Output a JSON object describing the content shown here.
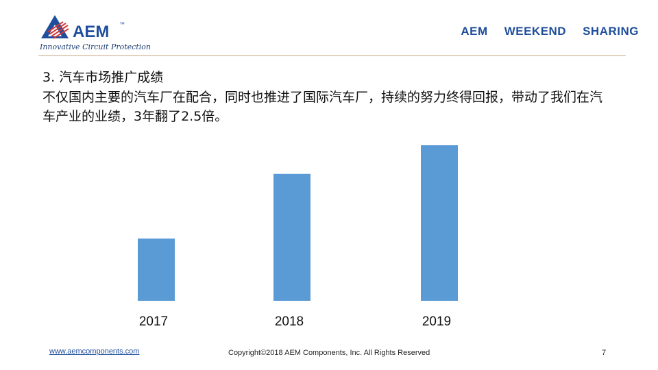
{
  "logo": {
    "brand": "AEM",
    "trademark": "™",
    "tagline": "Innovative Circuit Protection",
    "color": "#1f4e9c"
  },
  "header": {
    "words": [
      "AEM",
      "WEEKEND",
      "SHARING"
    ]
  },
  "content": {
    "heading": "3. 汽车市场推广成绩",
    "body": "不仅国内主要的汽车厂在配合，同时也推进了国际汽车厂，持续的努力终得回报，带动了我们在汽车产业的业绩，3年翻了2.5倍。"
  },
  "chart_data": {
    "type": "bar",
    "categories": [
      "2017",
      "2018",
      "2019"
    ],
    "values": [
      1.0,
      2.04,
      2.5
    ],
    "title": "",
    "xlabel": "",
    "ylabel": "",
    "ylim": [
      0,
      2.5
    ],
    "bar_color": "#5b9bd5",
    "grid": false,
    "legend": "none"
  },
  "footer": {
    "website": "www.aemcomponents.com",
    "copyright": "Copyright©2018 AEM Components, Inc. All Rights Reserved",
    "page_number": "7"
  }
}
